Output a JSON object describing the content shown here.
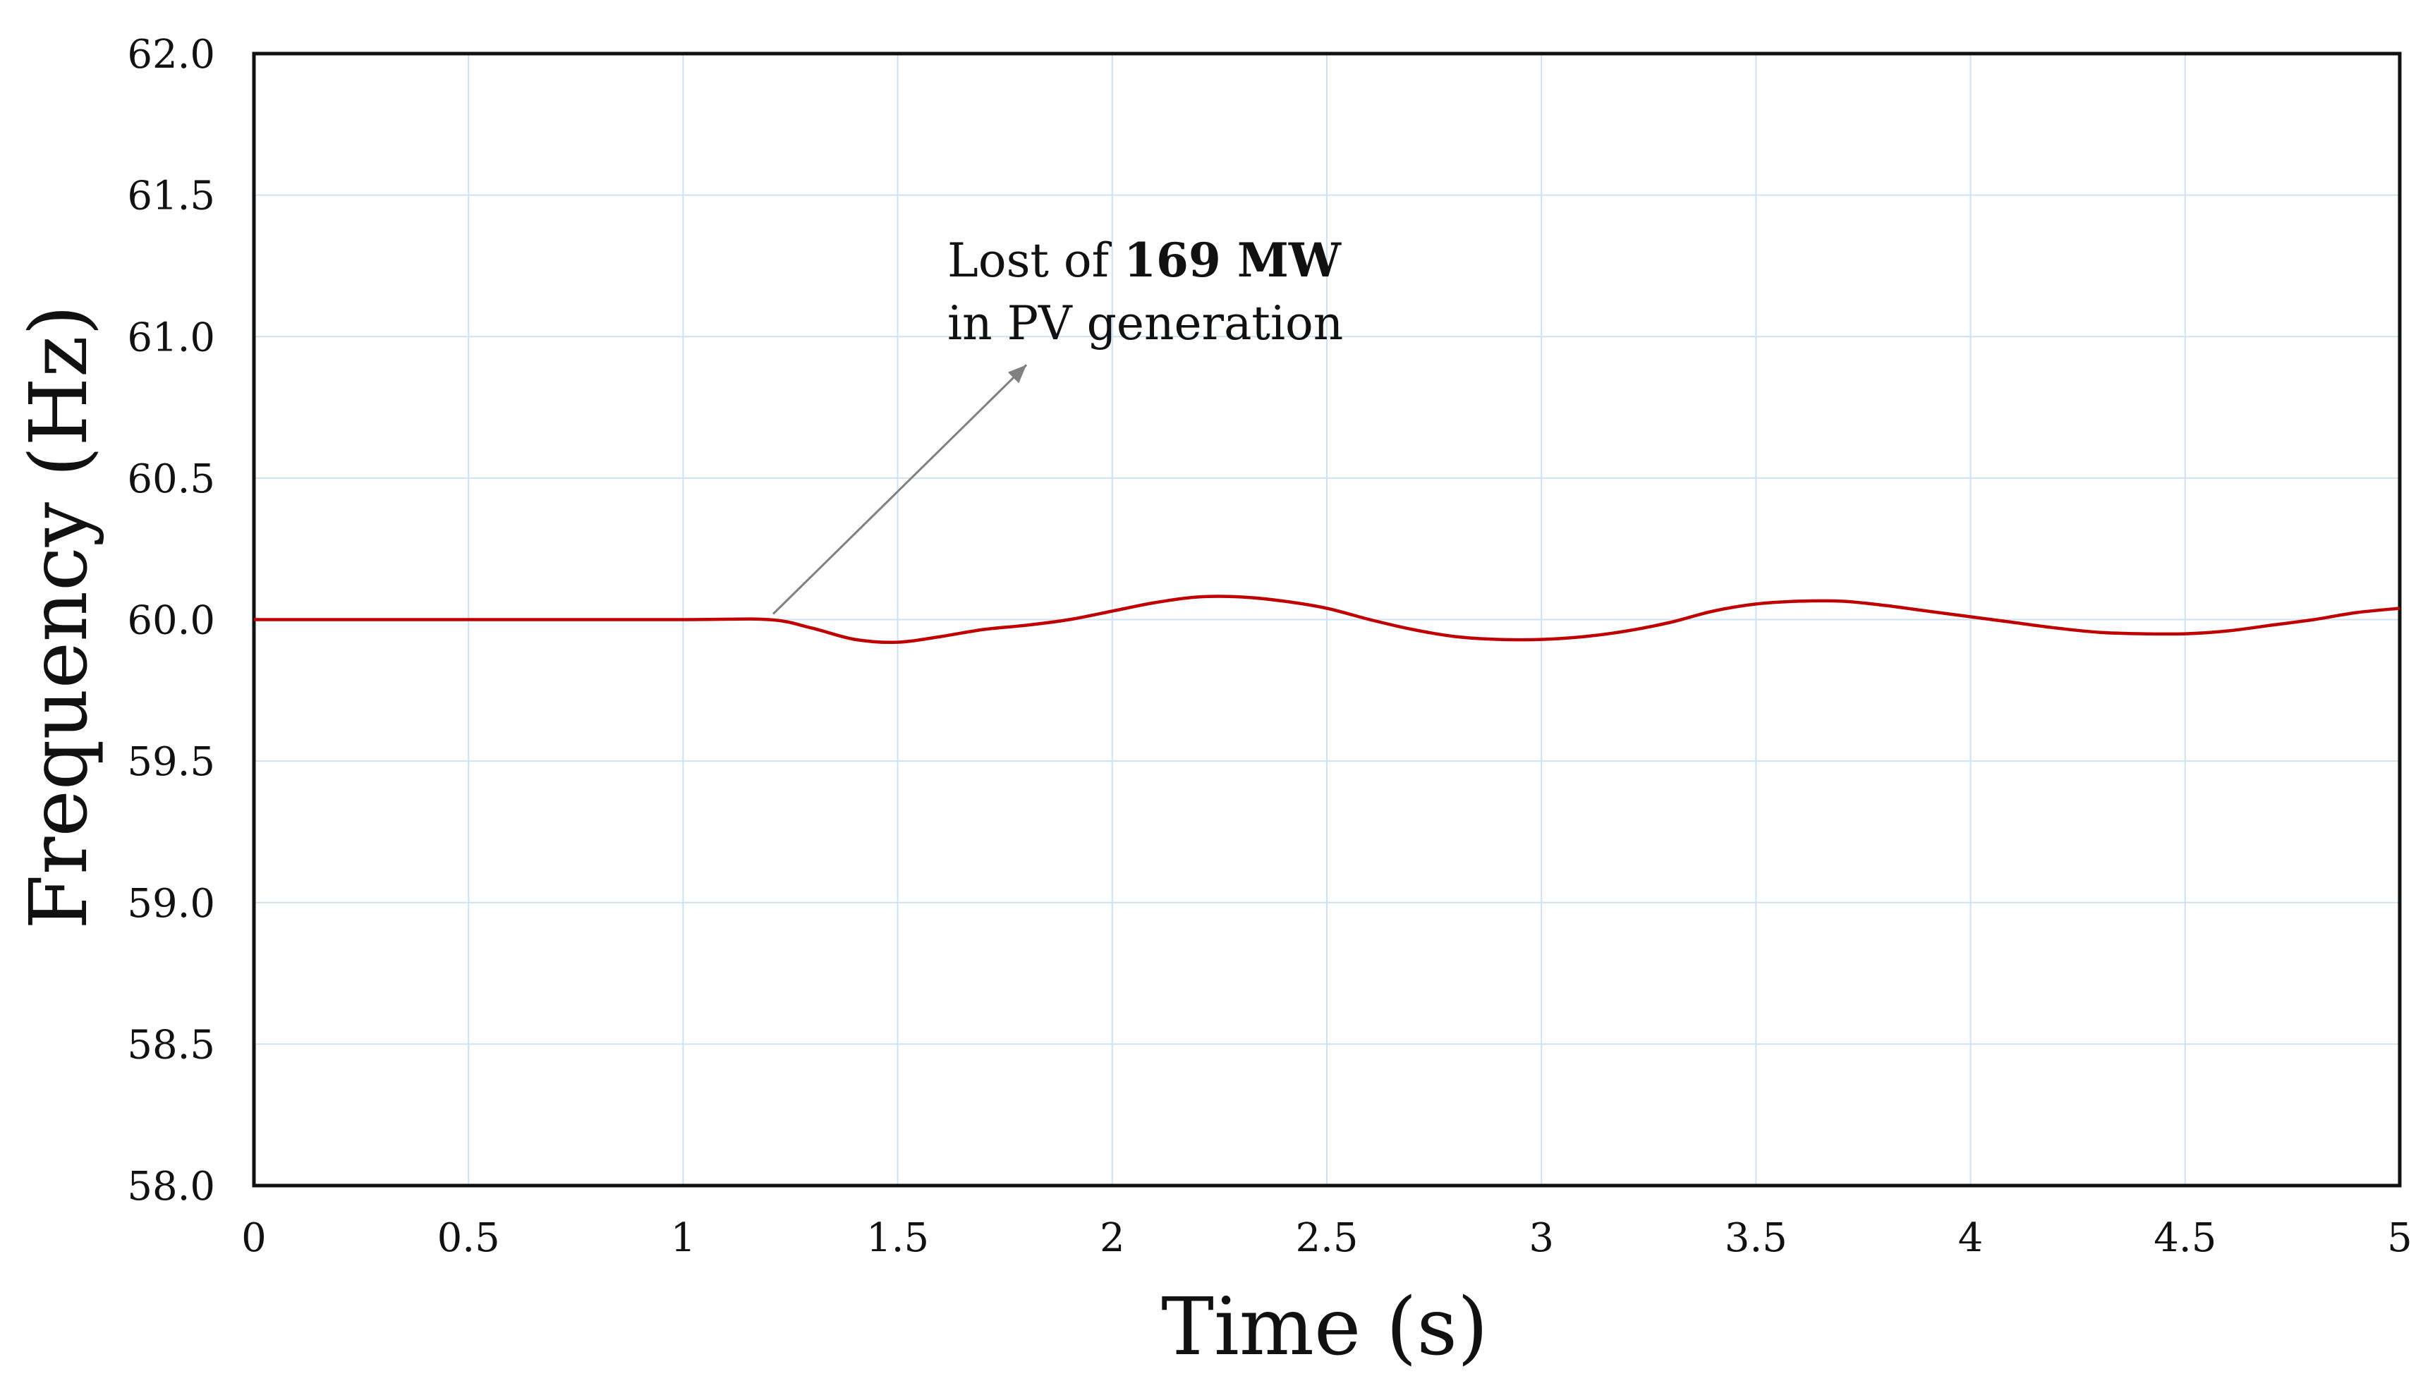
{
  "chart_data": {
    "type": "line",
    "title": "",
    "xlabel": "Time (s)",
    "ylabel": "Frequency (Hz)",
    "xlim": [
      0,
      5
    ],
    "ylim": [
      58.0,
      62.0
    ],
    "x_ticks": [
      0,
      0.5,
      1,
      1.5,
      2,
      2.5,
      3,
      3.5,
      4,
      4.5,
      5
    ],
    "x_tick_labels": [
      "0",
      "0.5",
      "1",
      "1.5",
      "2",
      "2.5",
      "3",
      "3.5",
      "4",
      "4.5",
      "5"
    ],
    "y_ticks": [
      58.0,
      58.5,
      59.0,
      59.5,
      60.0,
      60.5,
      61.0,
      61.5,
      62.0
    ],
    "y_tick_labels": [
      "58.0",
      "58.5",
      "59.0",
      "59.5",
      "60.0",
      "60.5",
      "61.0",
      "61.5",
      "62.0"
    ],
    "grid": true,
    "legend": "none",
    "series": [
      {
        "name": "Frequency",
        "color": "#c00000",
        "x": [
          0,
          0.5,
          1.0,
          1.2,
          1.3,
          1.4,
          1.5,
          1.6,
          1.7,
          1.8,
          1.9,
          2.0,
          2.1,
          2.2,
          2.3,
          2.4,
          2.5,
          2.6,
          2.7,
          2.8,
          2.9,
          3.0,
          3.1,
          3.2,
          3.3,
          3.4,
          3.5,
          3.6,
          3.7,
          3.8,
          3.9,
          4.0,
          4.1,
          4.2,
          4.3,
          4.4,
          4.5,
          4.6,
          4.7,
          4.8,
          4.9,
          5.0
        ],
        "y": [
          60.0,
          60.0,
          60.0,
          60.0,
          59.97,
          59.93,
          59.92,
          59.94,
          59.965,
          59.98,
          60.0,
          60.03,
          60.06,
          60.08,
          60.08,
          60.065,
          60.04,
          60.0,
          59.965,
          59.94,
          59.93,
          59.93,
          59.94,
          59.96,
          59.99,
          60.03,
          60.055,
          60.065,
          60.065,
          60.05,
          60.03,
          60.01,
          59.99,
          59.97,
          59.955,
          59.95,
          59.95,
          59.96,
          59.98,
          60.0,
          60.025,
          60.04
        ]
      }
    ],
    "annotations": [
      {
        "text_prefix": "Lost of ",
        "text_bold": "169 MW",
        "text_line2": "in PV generation",
        "arrow_from": [
          1.2,
          60.0
        ],
        "arrow_to": [
          1.8,
          60.9
        ]
      }
    ]
  }
}
